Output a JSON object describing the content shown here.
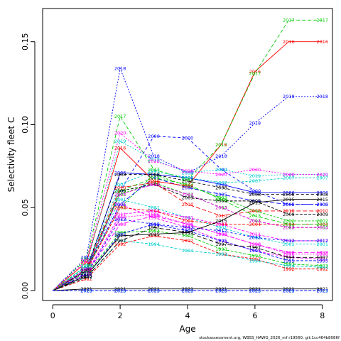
{
  "chart_data": {
    "type": "line",
    "xlabel": "Age",
    "ylabel": "Selectivity fleet C",
    "xlim": [
      -0.3,
      8.3
    ],
    "ylim": [
      -0.006,
      0.17
    ],
    "x_ticks": [
      "0",
      "2",
      "4",
      "6",
      "8"
    ],
    "y_ticks": [
      "0.00",
      "0.05",
      "0.10",
      "0.15"
    ],
    "footer": "stockassessment.org, WBSS_HAWG_2026_mf r19560, git:1cc464b8086f",
    "x": [
      0,
      1,
      2,
      3,
      4,
      5,
      6,
      7,
      8
    ],
    "series": [
      {
        "name": "1991",
        "color": "#ff00ff",
        "dash": "4,2",
        "values": [
          0,
          0.012,
          0.052,
          0.044,
          0.038,
          0.03,
          0.024,
          0.02,
          0.019
        ]
      },
      {
        "name": "1992",
        "color": "#ff0000",
        "dash": "4,2",
        "values": [
          0,
          0.007,
          0.028,
          0.033,
          0.03,
          0.022,
          0.019,
          0.013,
          0.013
        ]
      },
      {
        "name": "1993",
        "color": "#00cc00",
        "dash": "4,2",
        "values": [
          0,
          0.01,
          0.035,
          0.036,
          0.033,
          0.025,
          0.021,
          0.016,
          0.015
        ]
      },
      {
        "name": "1994",
        "color": "#00cccc",
        "dash": "4,2",
        "values": [
          0,
          0.008,
          0.03,
          0.028,
          0.024,
          0.022,
          0.018,
          0.015,
          0.014
        ]
      },
      {
        "name": "1995",
        "color": "#0000ff",
        "dash": "4,2",
        "values": [
          0,
          0.009,
          0.034,
          0.04,
          0.036,
          0.03,
          0.024,
          0.018,
          0.018
        ]
      },
      {
        "name": "1996",
        "color": "#ff00ff",
        "dash": "2,2",
        "values": [
          0,
          0.011,
          0.044,
          0.046,
          0.04,
          0.034,
          0.028,
          0.022,
          0.022
        ]
      },
      {
        "name": "1997",
        "color": "#000000",
        "dash": "6,3",
        "values": [
          0,
          0.008,
          0.03,
          0.038,
          0.035,
          0.028,
          0.026,
          0.02,
          0.02
        ]
      },
      {
        "name": "1998",
        "color": "#ff00ff",
        "dash": "6,3",
        "values": [
          0,
          0.01,
          0.04,
          0.045,
          0.04,
          0.034,
          0.028,
          0.023,
          0.023
        ]
      },
      {
        "name": "2000",
        "color": "#0000ff",
        "dash": "4,3",
        "values": [
          0,
          0.012,
          0.06,
          0.093,
          0.092,
          0.073,
          0.06,
          0.052,
          0.052
        ]
      },
      {
        "name": "2001",
        "color": "#00cccc",
        "dash": "3,2",
        "values": [
          0,
          0.014,
          0.055,
          0.05,
          0.044,
          0.038,
          0.032,
          0.028,
          0.028
        ]
      },
      {
        "name": "2002",
        "color": "#00cc00",
        "dash": "3,2",
        "values": [
          0,
          0.013,
          0.05,
          0.07,
          0.063,
          0.056,
          0.048,
          0.042,
          0.042
        ]
      },
      {
        "name": "2003",
        "color": "#00cc00",
        "dash": "4,2",
        "values": [
          0,
          0.015,
          0.058,
          0.065,
          0.058,
          0.05,
          0.042,
          0.038,
          0.038
        ]
      },
      {
        "name": "2004",
        "color": "#ff0000",
        "dash": "4,2",
        "values": [
          0,
          0.012,
          0.05,
          0.048,
          0.042,
          0.04,
          0.04,
          0.04,
          0.04
        ]
      },
      {
        "name": "2005",
        "color": "#0000ff",
        "dash": "6,3",
        "values": [
          0,
          0.013,
          0.052,
          0.068,
          0.062,
          0.058,
          0.054,
          0.052,
          0.052
        ]
      },
      {
        "name": "2006",
        "color": "#0000ff",
        "dash": "",
        "values": [
          0,
          0.012,
          0.071,
          0.07,
          0.068,
          0.064,
          0.059,
          0.059,
          0.059
        ]
      },
      {
        "name": "2007",
        "color": "#00cccc",
        "dash": "3,2",
        "values": [
          0,
          0.014,
          0.064,
          0.072,
          0.068,
          0.065,
          0.066,
          0.068,
          0.068
        ]
      },
      {
        "name": "2008",
        "color": "#000000",
        "dash": "4,3",
        "values": [
          0,
          0.013,
          0.07,
          0.07,
          0.066,
          0.062,
          0.058,
          0.058,
          0.058
        ]
      },
      {
        "name": "2009",
        "color": "#000000",
        "dash": "4,2",
        "values": [
          0,
          0.012,
          0.06,
          0.064,
          0.056,
          0.054,
          0.054,
          0.046,
          0.046
        ]
      },
      {
        "name": "2010",
        "color": "#ff0000",
        "dash": "6,3",
        "values": [
          0,
          0.013,
          0.062,
          0.065,
          0.052,
          0.045,
          0.048,
          0.048,
          0.048
        ]
      },
      {
        "name": "2011",
        "color": "#ff00ff",
        "dash": "4,2",
        "values": [
          0,
          0.01,
          0.046,
          0.048,
          0.044,
          0.04,
          0.034,
          0.03,
          0.03
        ]
      },
      {
        "name": "2012",
        "color": "#0000ff",
        "dash": "3,3",
        "values": [
          0,
          0.01,
          0.043,
          0.04,
          0.038,
          0.036,
          0.032,
          0.03,
          0.03
        ]
      },
      {
        "name": "2013",
        "color": "#00cc00",
        "dash": "6,3",
        "values": [
          0,
          0.011,
          0.06,
          0.068,
          0.064,
          0.055,
          0.045,
          0.04,
          0.04
        ]
      },
      {
        "name": "2014",
        "color": "#ff00ff",
        "dash": "4,2",
        "values": [
          0,
          0.013,
          0.058,
          0.064,
          0.058,
          0.05,
          0.042,
          0.038,
          0.038
        ]
      },
      {
        "name": "2015",
        "color": "#000000",
        "dash": "",
        "values": [
          0,
          0.009,
          0.033,
          0.034,
          0.035,
          0.042,
          0.053,
          0.055,
          0.055
        ]
      },
      {
        "name": "2016",
        "color": "#ff0000",
        "dash": "",
        "values": [
          0,
          0.017,
          0.086,
          0.066,
          0.063,
          0.088,
          0.132,
          0.15,
          0.15
        ]
      },
      {
        "name": "2017",
        "color": "#00cc00",
        "dash": "5,3",
        "values": [
          0,
          0.019,
          0.105,
          0.073,
          0.067,
          0.088,
          0.131,
          0.163,
          0.163
        ]
      },
      {
        "name": "2018",
        "color": "#0000ff",
        "dash": "2,2",
        "values": [
          0,
          0.02,
          0.134,
          0.081,
          0.071,
          0.081,
          0.101,
          0.117,
          0.117
        ]
      },
      {
        "name": "2019",
        "color": "#00cccc",
        "dash": "2,2",
        "values": [
          0,
          0.015,
          0.09,
          0.079,
          0.071,
          0.073,
          0.069,
          0.07,
          0.07
        ]
      },
      {
        "name": "2020",
        "color": "#ff00ff",
        "dash": "2,2",
        "values": [
          0,
          0.018,
          0.095,
          0.078,
          0.072,
          0.07,
          0.073,
          0.07,
          0.07
        ]
      },
      {
        "name": "2021",
        "color": "#000000",
        "dash": "",
        "values": [
          0,
          0.001,
          0.001,
          0.001,
          0.001,
          0.001,
          0.001,
          0.001,
          0.001
        ]
      },
      {
        "name": "2022",
        "color": "#00cccc",
        "dash": "4,2",
        "values": [
          0,
          0,
          0,
          0,
          0,
          0,
          0,
          0,
          0
        ]
      },
      {
        "name": "2023",
        "color": "#0000ff",
        "dash": "4,2",
        "values": [
          0,
          0,
          0,
          0,
          0,
          0,
          0,
          0,
          0
        ]
      }
    ]
  }
}
